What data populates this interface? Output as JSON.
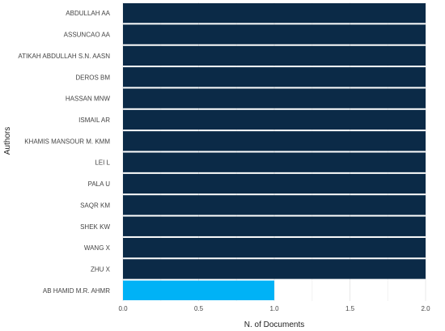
{
  "chart_data": {
    "type": "bar",
    "orientation": "horizontal",
    "xlabel": "N. of Documents",
    "ylabel": "Authors",
    "xlim": [
      0,
      2.0
    ],
    "x_ticks": [
      "0.0",
      "0.5",
      "1.0",
      "1.5",
      "2.0"
    ],
    "x_tick_values": [
      0,
      0.5,
      1.0,
      1.5,
      2.0
    ],
    "grid": true,
    "legend": "none",
    "categories": [
      "ABDULLAH AA",
      "ASSUNCAO AA",
      "ATIKAH ABDULLAH S.N. AASN",
      "DEROS BM",
      "HASSAN MNW",
      "ISMAIL AR",
      "KHAMIS MANSOUR M. KMM",
      "LEI L",
      "PALA U",
      "SAQR KM",
      "SHEK KW",
      "WANG X",
      "ZHU X",
      "AB HAMID M.R. AHMR"
    ],
    "values": [
      2,
      2,
      2,
      2,
      2,
      2,
      2,
      2,
      2,
      2,
      2,
      2,
      2,
      1
    ],
    "colors": {
      "high": "#0b2a47",
      "low": "#00b2f6",
      "grid": "#e8e8e8",
      "separator": "#ffffff"
    }
  }
}
